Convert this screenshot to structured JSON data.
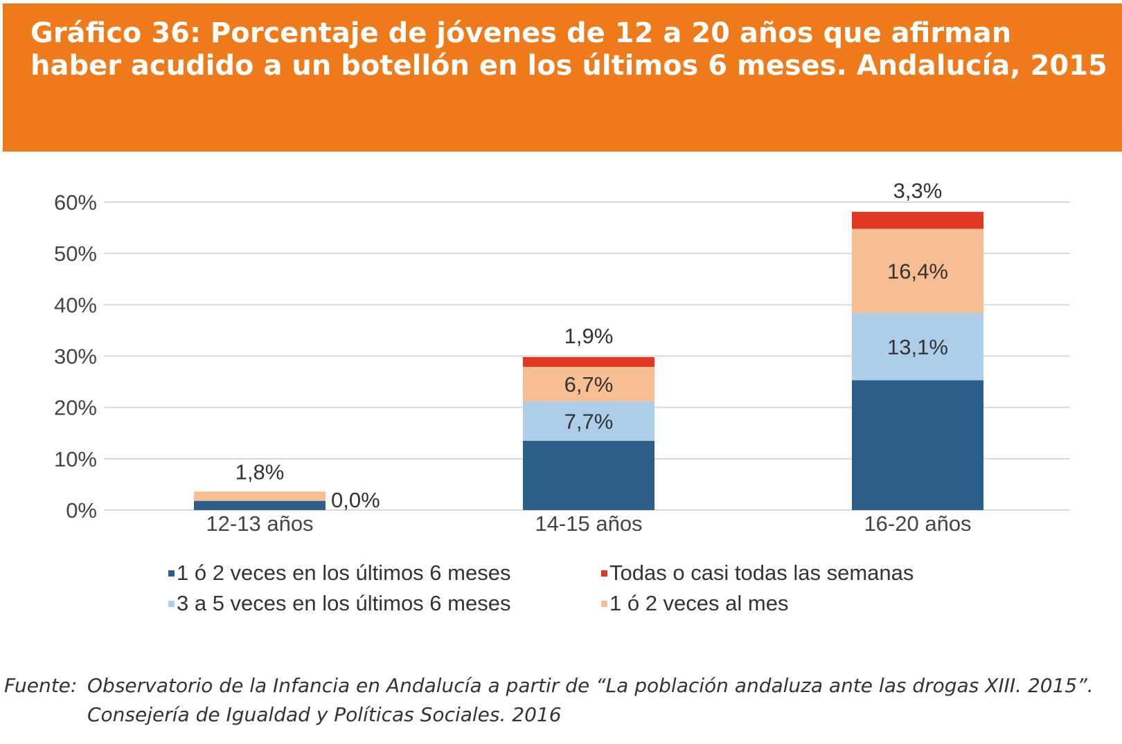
{
  "title": "Gráfico 36: Porcentaje de jóvenes de 12 a 20 años que afirman haber acudido a un botellón en los últimos 6 meses. Andalucía, 2015",
  "colors": {
    "header": "#ee7a1a",
    "grid": "#d9d9d9"
  },
  "chart_data": {
    "type": "bar",
    "stacked": true,
    "categories": [
      "12-13 años",
      "14-15 años",
      "16-20 años"
    ],
    "ylim": [
      0,
      60
    ],
    "yticks": [
      "0%",
      "10%",
      "20%",
      "30%",
      "40%",
      "50%",
      "60%"
    ],
    "grid": true,
    "legend_position": "bottom",
    "series": [
      {
        "name": "1 ó 2 veces en los últimos 6 meses",
        "color": "#2c608b",
        "values": [
          1.8,
          13.5,
          25.3
        ],
        "labels": [
          "",
          "",
          ""
        ]
      },
      {
        "name": "3 a 5 veces en los últimos 6 meses",
        "color": "#aecde9",
        "values": [
          0.0,
          7.7,
          13.1
        ],
        "labels": [
          "0,0%",
          "7,7%",
          "13,1%"
        ]
      },
      {
        "name": "1 ó 2 veces al mes",
        "color": "#f7be94",
        "values": [
          1.8,
          6.7,
          16.4
        ],
        "labels": [
          "1,8%",
          "6,7%",
          "16,4%"
        ]
      },
      {
        "name": "Todas o casi todas las semanas",
        "color": "#e23823",
        "values": [
          0.0,
          1.9,
          3.3
        ],
        "labels": [
          "",
          "1,9%",
          "3,3%"
        ]
      }
    ]
  },
  "source": {
    "label": "Fuente:",
    "line1": "Observatorio de la Infancia en Andalucía a partir de “La población andaluza ante las drogas XIII. 2015”.",
    "line2": "Consejería de Igualdad y Políticas Sociales. 2016"
  }
}
